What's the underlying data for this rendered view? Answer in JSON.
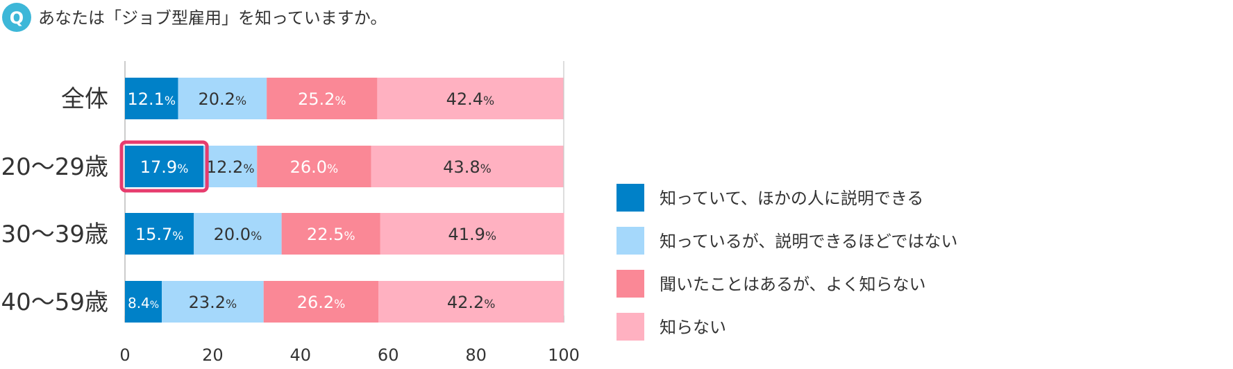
{
  "question": {
    "badge": "Q",
    "text": "あなたは「ジョブ型雇用」を知っていますか。"
  },
  "colors": {
    "badge": "#3db7d8",
    "highlight": "#e73c6e",
    "axis": "#bbbbbb",
    "label_dark": "#333333",
    "label_light": "#ffffff"
  },
  "chart_data": {
    "type": "bar",
    "orientation": "horizontal",
    "stacked": true,
    "value_suffix": "%",
    "categories": [
      "全体",
      "20〜29歳",
      "30〜39歳",
      "40〜59歳"
    ],
    "highlight": {
      "category": "20〜29歳",
      "series": "知っていて、ほかの人に説明できる"
    },
    "series": [
      {
        "name": "知っていて、ほかの人に説明できる",
        "color": "#0081c8",
        "label_color": "#ffffff",
        "values": [
          12.1,
          17.9,
          15.7,
          8.4
        ]
      },
      {
        "name": "知っているが、説明できるほどではない",
        "color": "#a5d8fb",
        "label_color": "#333333",
        "values": [
          20.2,
          12.2,
          20.0,
          23.2
        ]
      },
      {
        "name": "聞いたことはあるが、よく知らない",
        "color": "#fa8896",
        "label_color": "#ffffff",
        "values": [
          25.2,
          26.0,
          22.5,
          26.2
        ]
      },
      {
        "name": "知らない",
        "color": "#ffb1c1",
        "label_color": "#333333",
        "values": [
          42.4,
          43.8,
          41.9,
          42.2
        ]
      }
    ],
    "xlim": [
      0,
      100
    ],
    "xticks": [
      0,
      20,
      40,
      60,
      80,
      100
    ],
    "legend_position": "right",
    "grid": false
  }
}
